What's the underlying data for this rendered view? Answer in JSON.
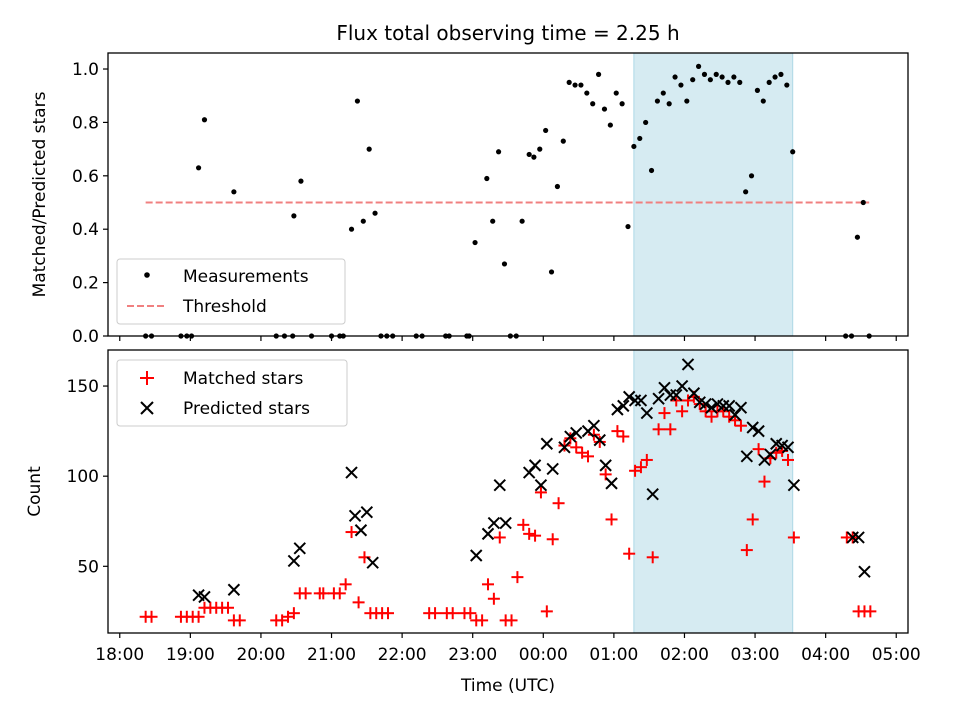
{
  "chart_data": [
    {
      "type": "scatter",
      "title": "Flux total observing time = 2.25 h",
      "xlabel": "",
      "ylabel": "Matched/Predicted stars",
      "ylim": [
        0,
        1.06
      ],
      "yticks": [
        "0.0",
        "0.2",
        "0.4",
        "0.6",
        "0.8",
        "1.0"
      ],
      "shaded_span": [
        "01:17",
        "03:32"
      ],
      "legend_position": "lower-left",
      "series": [
        {
          "name": "Measurements",
          "marker": "dot",
          "color": "#000000",
          "points": [
            [
              "18:22",
              0
            ],
            [
              "18:27",
              0
            ],
            [
              "18:52",
              0
            ],
            [
              "18:57",
              0
            ],
            [
              "19:01",
              0
            ],
            [
              "19:07",
              0.63
            ],
            [
              "19:12",
              0.81
            ],
            [
              "19:37",
              0.54
            ],
            [
              "20:13",
              0
            ],
            [
              "20:20",
              0
            ],
            [
              "20:27",
              0
            ],
            [
              "20:28",
              0.45
            ],
            [
              "20:34",
              0.58
            ],
            [
              "20:43",
              0
            ],
            [
              "21:00",
              0
            ],
            [
              "21:07",
              0
            ],
            [
              "21:10",
              0
            ],
            [
              "21:17",
              0.4
            ],
            [
              "21:22",
              0.88
            ],
            [
              "21:27",
              0.43
            ],
            [
              "21:32",
              0.7
            ],
            [
              "21:37",
              0.46
            ],
            [
              "21:42",
              0
            ],
            [
              "21:47",
              0
            ],
            [
              "21:52",
              0
            ],
            [
              "22:12",
              0
            ],
            [
              "22:17",
              0
            ],
            [
              "22:37",
              0
            ],
            [
              "22:40",
              0
            ],
            [
              "22:55",
              0
            ],
            [
              "22:57",
              0
            ],
            [
              "23:02",
              0.35
            ],
            [
              "23:12",
              0.59
            ],
            [
              "23:17",
              0.43
            ],
            [
              "23:22",
              0.69
            ],
            [
              "23:27",
              0.27
            ],
            [
              "23:32",
              0
            ],
            [
              "23:37",
              0
            ],
            [
              "23:42",
              0.43
            ],
            [
              "23:48",
              0.68
            ],
            [
              "23:52",
              0.67
            ],
            [
              "23:57",
              0.7
            ],
            [
              "00:02",
              0.77
            ],
            [
              "00:07",
              0.24
            ],
            [
              "00:12",
              0.56
            ],
            [
              "00:17",
              0.73
            ],
            [
              "00:22",
              0.95
            ],
            [
              "00:27",
              0.94
            ],
            [
              "00:32",
              0.94
            ],
            [
              "00:37",
              0.91
            ],
            [
              "00:42",
              0.87
            ],
            [
              "00:47",
              0.98
            ],
            [
              "00:52",
              0.85
            ],
            [
              "00:57",
              0.79
            ],
            [
              "01:02",
              0.91
            ],
            [
              "01:07",
              0.87
            ],
            [
              "01:12",
              0.41
            ],
            [
              "01:17",
              0.71
            ],
            [
              "01:22",
              0.74
            ],
            [
              "01:27",
              0.8
            ],
            [
              "01:32",
              0.62
            ],
            [
              "01:37",
              0.88
            ],
            [
              "01:42",
              0.91
            ],
            [
              "01:47",
              0.87
            ],
            [
              "01:52",
              0.97
            ],
            [
              "01:57",
              0.94
            ],
            [
              "02:02",
              0.88
            ],
            [
              "02:07",
              0.96
            ],
            [
              "02:12",
              1.01
            ],
            [
              "02:17",
              0.98
            ],
            [
              "02:22",
              0.96
            ],
            [
              "02:27",
              0.98
            ],
            [
              "02:32",
              0.97
            ],
            [
              "02:37",
              0.95
            ],
            [
              "02:42",
              0.97
            ],
            [
              "02:47",
              0.95
            ],
            [
              "02:52",
              0.54
            ],
            [
              "02:57",
              0.6
            ],
            [
              "03:02",
              0.92
            ],
            [
              "03:07",
              0.88
            ],
            [
              "03:12",
              0.95
            ],
            [
              "03:17",
              0.97
            ],
            [
              "03:22",
              0.98
            ],
            [
              "03:27",
              0.94
            ],
            [
              "03:32",
              0.69
            ],
            [
              "04:17",
              0
            ],
            [
              "04:22",
              0
            ],
            [
              "04:27",
              0.37
            ],
            [
              "04:32",
              0.5
            ],
            [
              "04:37",
              0
            ]
          ]
        },
        {
          "name": "Threshold",
          "marker": "dashed-line",
          "color": "#f08080",
          "x": [
            "18:22",
            "04:37"
          ],
          "y": [
            0.5,
            0.5
          ]
        }
      ]
    },
    {
      "type": "scatter",
      "title": "",
      "xlabel": "Time (UTC)",
      "ylabel": "Count",
      "ylim": [
        13,
        170
      ],
      "yticks": [
        "50",
        "100",
        "150"
      ],
      "xticks": [
        "18:00",
        "19:00",
        "20:00",
        "21:00",
        "22:00",
        "23:00",
        "00:00",
        "01:00",
        "02:00",
        "03:00",
        "04:00",
        "05:00"
      ],
      "shaded_span": [
        "01:17",
        "03:32"
      ],
      "legend_position": "top-left",
      "series": [
        {
          "name": "Matched stars",
          "marker": "plus",
          "color": "#ff0000",
          "points": [
            [
              "18:22",
              22
            ],
            [
              "18:27",
              22
            ],
            [
              "18:52",
              22
            ],
            [
              "18:57",
              22
            ],
            [
              "19:02",
              22
            ],
            [
              "19:07",
              22
            ],
            [
              "19:12",
              27
            ],
            [
              "19:17",
              27
            ],
            [
              "19:22",
              27
            ],
            [
              "19:27",
              27
            ],
            [
              "19:32",
              27
            ],
            [
              "19:37",
              20
            ],
            [
              "19:42",
              20
            ],
            [
              "20:13",
              20
            ],
            [
              "20:18",
              20
            ],
            [
              "20:23",
              22
            ],
            [
              "20:28",
              24
            ],
            [
              "20:33",
              35
            ],
            [
              "20:38",
              35
            ],
            [
              "20:50",
              35
            ],
            [
              "20:53",
              35
            ],
            [
              "21:02",
              35
            ],
            [
              "21:07",
              35
            ],
            [
              "21:12",
              40
            ],
            [
              "21:17",
              69
            ],
            [
              "21:23",
              30
            ],
            [
              "21:28",
              55
            ],
            [
              "21:33",
              24
            ],
            [
              "21:38",
              24
            ],
            [
              "21:43",
              24
            ],
            [
              "21:48",
              24
            ],
            [
              "22:23",
              24
            ],
            [
              "22:28",
              24
            ],
            [
              "22:38",
              24
            ],
            [
              "22:43",
              24
            ],
            [
              "22:53",
              24
            ],
            [
              "22:58",
              24
            ],
            [
              "23:03",
              20
            ],
            [
              "23:08",
              20
            ],
            [
              "23:13",
              40
            ],
            [
              "23:18",
              32
            ],
            [
              "23:23",
              66
            ],
            [
              "23:28",
              20
            ],
            [
              "23:33",
              20
            ],
            [
              "23:38",
              44
            ],
            [
              "23:43",
              73
            ],
            [
              "23:48",
              68
            ],
            [
              "23:53",
              67
            ],
            [
              "23:58",
              91
            ],
            [
              "00:03",
              25
            ],
            [
              "00:08",
              65
            ],
            [
              "00:13",
              85
            ],
            [
              "00:18",
              117
            ],
            [
              "00:23",
              121
            ],
            [
              "00:28",
              116
            ],
            [
              "00:33",
              113
            ],
            [
              "00:38",
              111
            ],
            [
              "00:43",
              123
            ],
            [
              "00:48",
              119
            ],
            [
              "00:53",
              101
            ],
            [
              "00:58",
              76
            ],
            [
              "01:03",
              125
            ],
            [
              "01:08",
              122
            ],
            [
              "01:13",
              57
            ],
            [
              "01:18",
              103
            ],
            [
              "01:23",
              105
            ],
            [
              "01:28",
              109
            ],
            [
              "01:33",
              55
            ],
            [
              "01:38",
              126
            ],
            [
              "01:43",
              135
            ],
            [
              "01:48",
              126
            ],
            [
              "01:53",
              142
            ],
            [
              "01:58",
              136
            ],
            [
              "02:03",
              142
            ],
            [
              "02:08",
              144
            ],
            [
              "02:13",
              140
            ],
            [
              "02:18",
              136
            ],
            [
              "02:23",
              133
            ],
            [
              "02:28",
              136
            ],
            [
              "02:33",
              136
            ],
            [
              "02:38",
              133
            ],
            [
              "02:43",
              131
            ],
            [
              "02:48",
              128
            ],
            [
              "02:53",
              59
            ],
            [
              "02:58",
              76
            ],
            [
              "03:03",
              115
            ],
            [
              "03:08",
              97
            ],
            [
              "03:13",
              110
            ],
            [
              "03:18",
              113
            ],
            [
              "03:23",
              114
            ],
            [
              "03:28",
              109
            ],
            [
              "03:33",
              66
            ],
            [
              "04:18",
              66
            ],
            [
              "04:23",
              66
            ],
            [
              "04:28",
              25
            ],
            [
              "04:33",
              25
            ],
            [
              "04:38",
              25
            ]
          ]
        },
        {
          "name": "Predicted stars",
          "marker": "x",
          "color": "#000000",
          "points": [
            [
              "19:07",
              34
            ],
            [
              "19:12",
              33
            ],
            [
              "19:37",
              37
            ],
            [
              "20:28",
              53
            ],
            [
              "20:33",
              60
            ],
            [
              "21:17",
              102
            ],
            [
              "21:20",
              78
            ],
            [
              "21:25",
              70
            ],
            [
              "21:30",
              80
            ],
            [
              "21:35",
              52
            ],
            [
              "23:03",
              56
            ],
            [
              "23:13",
              68
            ],
            [
              "23:18",
              74
            ],
            [
              "23:23",
              95
            ],
            [
              "23:28",
              74
            ],
            [
              "23:48",
              102
            ],
            [
              "23:53",
              106
            ],
            [
              "23:58",
              95
            ],
            [
              "00:03",
              118
            ],
            [
              "00:08",
              104
            ],
            [
              "00:18",
              116
            ],
            [
              "00:23",
              122
            ],
            [
              "00:28",
              124
            ],
            [
              "00:38",
              125
            ],
            [
              "00:43",
              128
            ],
            [
              "00:48",
              120
            ],
            [
              "00:53",
              106
            ],
            [
              "00:58",
              96
            ],
            [
              "01:03",
              137
            ],
            [
              "01:08",
              139
            ],
            [
              "01:13",
              144
            ],
            [
              "01:18",
              142
            ],
            [
              "01:23",
              142
            ],
            [
              "01:28",
              135
            ],
            [
              "01:33",
              90
            ],
            [
              "01:38",
              143
            ],
            [
              "01:43",
              149
            ],
            [
              "01:48",
              145
            ],
            [
              "01:53",
              145
            ],
            [
              "01:58",
              150
            ],
            [
              "02:03",
              162
            ],
            [
              "02:08",
              146
            ],
            [
              "02:13",
              141
            ],
            [
              "02:18",
              140
            ],
            [
              "02:23",
              138
            ],
            [
              "02:28",
              140
            ],
            [
              "02:33",
              139
            ],
            [
              "02:38",
              139
            ],
            [
              "02:43",
              134
            ],
            [
              "02:48",
              138
            ],
            [
              "02:53",
              111
            ],
            [
              "02:58",
              127
            ],
            [
              "03:03",
              125
            ],
            [
              "03:08",
              109
            ],
            [
              "03:13",
              112
            ],
            [
              "03:18",
              118
            ],
            [
              "03:23",
              117
            ],
            [
              "03:28",
              116
            ],
            [
              "03:33",
              95
            ],
            [
              "04:23",
              66
            ],
            [
              "04:28",
              66
            ],
            [
              "04:33",
              47
            ]
          ]
        }
      ]
    }
  ]
}
